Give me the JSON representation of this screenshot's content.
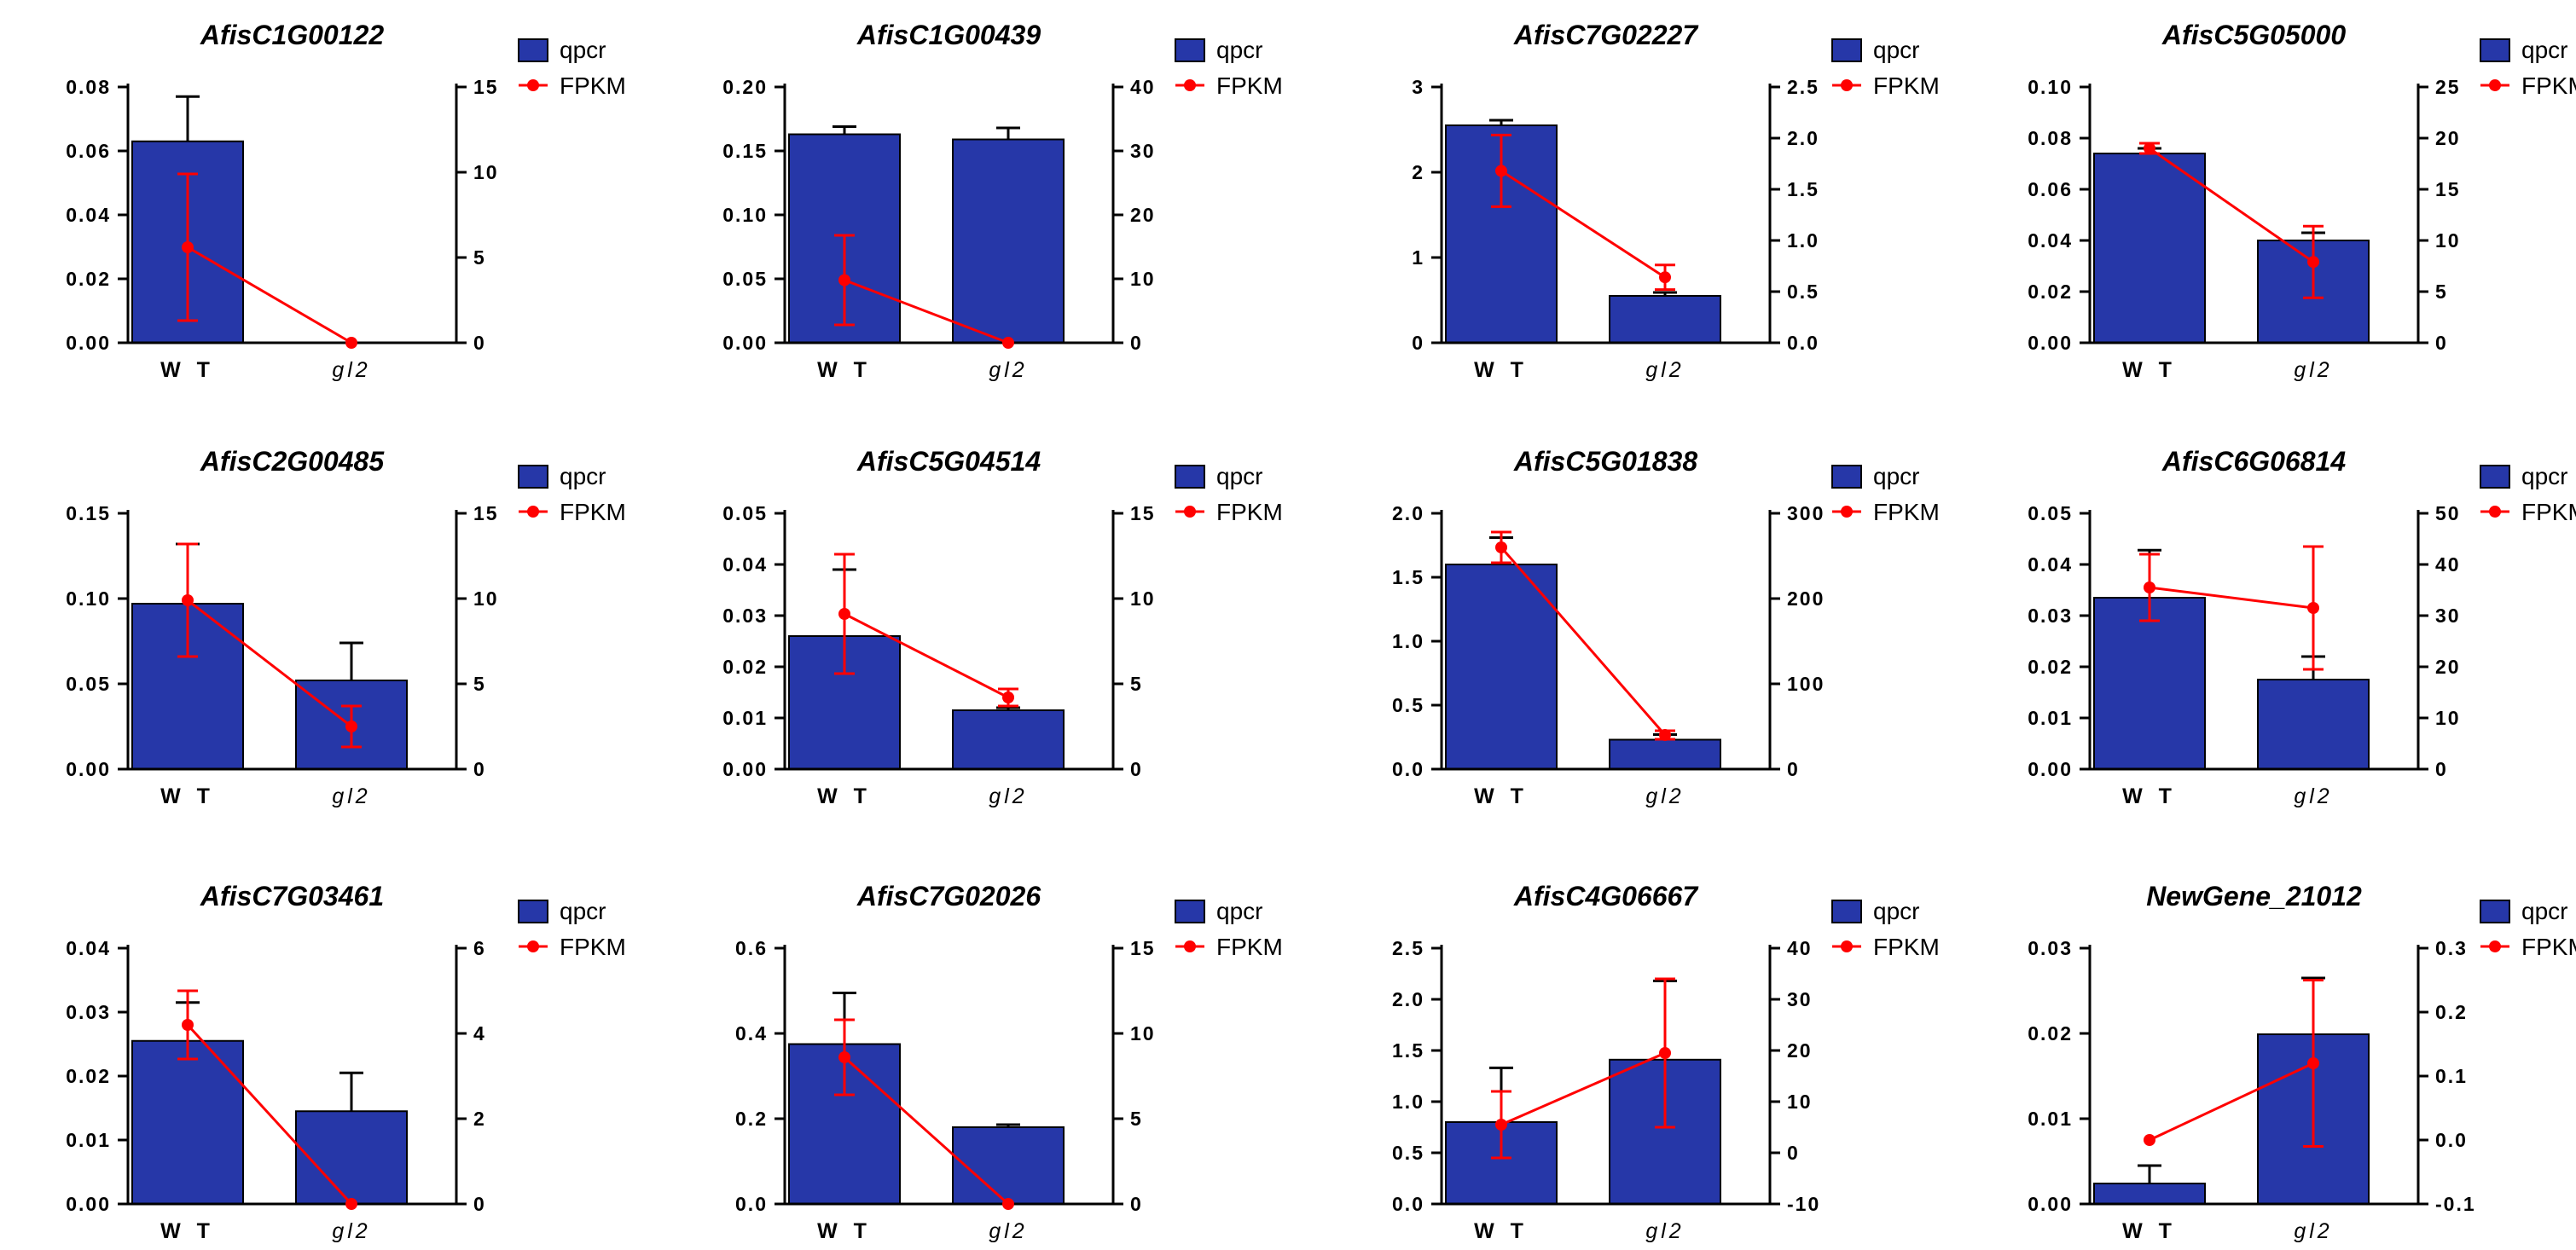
{
  "colors": {
    "bar": "#2637a8",
    "bar_edge": "#000000",
    "line": "#ff0000"
  },
  "legend": {
    "bar_label": "qpcr",
    "line_label": "FPKM"
  },
  "chart_data": [
    {
      "type": "bar+line",
      "title": "AfisC1G00122",
      "categories": [
        "W T",
        "gl2"
      ],
      "left_ylim": [
        0,
        0.08
      ],
      "left_ticks": [
        "0.00",
        "0.02",
        "0.04",
        "0.06",
        "0.08"
      ],
      "right_ylim": [
        0,
        15
      ],
      "right_ticks": [
        "0",
        "5",
        "10",
        "15"
      ],
      "series": [
        {
          "name": "qpcr",
          "values": [
            0.063,
            0.0
          ],
          "errors": [
            0.014,
            0.0
          ]
        },
        {
          "name": "FPKM",
          "values": [
            5.6,
            0.0
          ],
          "errors": [
            4.3,
            0.0
          ]
        }
      ]
    },
    {
      "type": "bar+line",
      "title": "AfisC1G00439",
      "categories": [
        "W T",
        "gl2"
      ],
      "left_ylim": [
        0,
        0.2
      ],
      "left_ticks": [
        "0.00",
        "0.05",
        "0.10",
        "0.15",
        "0.20"
      ],
      "right_ylim": [
        0,
        40
      ],
      "right_ticks": [
        "0",
        "10",
        "20",
        "30",
        "40"
      ],
      "series": [
        {
          "name": "qpcr",
          "values": [
            0.163,
            0.159
          ],
          "errors": [
            0.006,
            0.009
          ]
        },
        {
          "name": "FPKM",
          "values": [
            9.8,
            0.0
          ],
          "errors": [
            7.0,
            0.0
          ]
        }
      ]
    },
    {
      "type": "bar+line",
      "title": "AfisC7G02227",
      "categories": [
        "W T",
        "gl2"
      ],
      "left_ylim": [
        0,
        3
      ],
      "left_ticks": [
        "0",
        "1",
        "2",
        "3"
      ],
      "right_ylim": [
        0,
        2.5
      ],
      "right_ticks": [
        "0.0",
        "0.5",
        "1.0",
        "1.5",
        "2.0",
        "2.5"
      ],
      "series": [
        {
          "name": "qpcr",
          "values": [
            2.55,
            0.55
          ],
          "errors": [
            0.06,
            0.04
          ]
        },
        {
          "name": "FPKM",
          "values": [
            1.68,
            0.64
          ],
          "errors": [
            0.35,
            0.12
          ]
        }
      ]
    },
    {
      "type": "bar+line",
      "title": "AfisC5G05000",
      "categories": [
        "W T",
        "gl2"
      ],
      "left_ylim": [
        0,
        0.1
      ],
      "left_ticks": [
        "0.00",
        "0.02",
        "0.04",
        "0.06",
        "0.08",
        "0.10"
      ],
      "right_ylim": [
        0,
        25
      ],
      "right_ticks": [
        "0",
        "5",
        "10",
        "15",
        "20",
        "25"
      ],
      "series": [
        {
          "name": "qpcr",
          "values": [
            0.074,
            0.04
          ],
          "errors": [
            0.002,
            0.003
          ]
        },
        {
          "name": "FPKM",
          "values": [
            19.0,
            7.9
          ],
          "errors": [
            0.5,
            3.5
          ]
        }
      ]
    },
    {
      "type": "bar+line",
      "title": "AfisC2G00485",
      "categories": [
        "W T",
        "gl2"
      ],
      "left_ylim": [
        0,
        0.15
      ],
      "left_ticks": [
        "0.00",
        "0.05",
        "0.10",
        "0.15"
      ],
      "right_ylim": [
        0,
        15
      ],
      "right_ticks": [
        "0",
        "5",
        "10",
        "15"
      ],
      "series": [
        {
          "name": "qpcr",
          "values": [
            0.097,
            0.052
          ],
          "errors": [
            0.035,
            0.022
          ]
        },
        {
          "name": "FPKM",
          "values": [
            9.9,
            2.5
          ],
          "errors": [
            3.3,
            1.2
          ]
        }
      ]
    },
    {
      "type": "bar+line",
      "title": "AfisC5G04514",
      "categories": [
        "W T",
        "gl2"
      ],
      "left_ylim": [
        0,
        0.05
      ],
      "left_ticks": [
        "0.00",
        "0.01",
        "0.02",
        "0.03",
        "0.04",
        "0.05"
      ],
      "right_ylim": [
        0,
        15
      ],
      "right_ticks": [
        "0",
        "5",
        "10",
        "15"
      ],
      "series": [
        {
          "name": "qpcr",
          "values": [
            0.026,
            0.0115
          ],
          "errors": [
            0.013,
            0.0005
          ]
        },
        {
          "name": "FPKM",
          "values": [
            9.1,
            4.2
          ],
          "errors": [
            3.5,
            0.5
          ]
        }
      ]
    },
    {
      "type": "bar+line",
      "title": "AfisC5G01838",
      "categories": [
        "W T",
        "gl2"
      ],
      "left_ylim": [
        0,
        2
      ],
      "left_ticks": [
        "0.0",
        "0.5",
        "1.0",
        "1.5",
        "2.0"
      ],
      "right_ylim": [
        0,
        300
      ],
      "right_ticks": [
        "0",
        "100",
        "200",
        "300"
      ],
      "series": [
        {
          "name": "qpcr",
          "values": [
            1.6,
            0.23
          ],
          "errors": [
            0.21,
            0.04
          ]
        },
        {
          "name": "FPKM",
          "values": [
            260,
            40
          ],
          "errors": [
            18,
            5
          ]
        }
      ]
    },
    {
      "type": "bar+line",
      "title": "AfisC6G06814",
      "categories": [
        "W T",
        "gl2"
      ],
      "left_ylim": [
        0,
        0.05
      ],
      "left_ticks": [
        "0.00",
        "0.01",
        "0.02",
        "0.03",
        "0.04",
        "0.05"
      ],
      "right_ylim": [
        0,
        50
      ],
      "right_ticks": [
        "0",
        "10",
        "20",
        "30",
        "40",
        "50"
      ],
      "series": [
        {
          "name": "qpcr",
          "values": [
            0.0335,
            0.0175
          ],
          "errors": [
            0.0093,
            0.0045
          ]
        },
        {
          "name": "FPKM",
          "values": [
            35.5,
            31.5
          ],
          "errors": [
            6.5,
            12.0
          ]
        }
      ]
    },
    {
      "type": "bar+line",
      "title": "AfisC7G03461",
      "categories": [
        "W T",
        "gl2"
      ],
      "left_ylim": [
        0,
        0.04
      ],
      "left_ticks": [
        "0.00",
        "0.01",
        "0.02",
        "0.03",
        "0.04"
      ],
      "right_ylim": [
        0,
        6
      ],
      "right_ticks": [
        "0",
        "2",
        "4",
        "6"
      ],
      "series": [
        {
          "name": "qpcr",
          "values": [
            0.0255,
            0.0145
          ],
          "errors": [
            0.006,
            0.006
          ]
        },
        {
          "name": "FPKM",
          "values": [
            4.2,
            0.0
          ],
          "errors": [
            0.8,
            0.0
          ]
        }
      ]
    },
    {
      "type": "bar+line",
      "title": "AfisC7G02026",
      "categories": [
        "W T",
        "gl2"
      ],
      "left_ylim": [
        0,
        0.6
      ],
      "left_ticks": [
        "0.0",
        "0.2",
        "0.4",
        "0.6"
      ],
      "right_ylim": [
        0,
        15
      ],
      "right_ticks": [
        "0",
        "5",
        "10",
        "15"
      ],
      "series": [
        {
          "name": "qpcr",
          "values": [
            0.375,
            0.18
          ],
          "errors": [
            0.12,
            0.006
          ]
        },
        {
          "name": "FPKM",
          "values": [
            8.6,
            0.0
          ],
          "errors": [
            2.2,
            0.0
          ]
        }
      ]
    },
    {
      "type": "bar+line",
      "title": "AfisC4G06667",
      "categories": [
        "W T",
        "gl2"
      ],
      "left_ylim": [
        0,
        2.5
      ],
      "left_ticks": [
        "0.0",
        "0.5",
        "1.0",
        "1.5",
        "2.0",
        "2.5"
      ],
      "right_ylim": [
        -10,
        40
      ],
      "right_ticks": [
        "-10",
        "0",
        "10",
        "20",
        "30",
        "40"
      ],
      "series": [
        {
          "name": "qpcr",
          "values": [
            0.8,
            1.41
          ],
          "errors": [
            0.53,
            0.77
          ]
        },
        {
          "name": "FPKM",
          "values": [
            5.5,
            19.5
          ],
          "errors": [
            6.5,
            14.5
          ]
        }
      ]
    },
    {
      "type": "bar+line",
      "title": "NewGene_21012",
      "categories": [
        "W T",
        "gl2"
      ],
      "left_ylim": [
        0,
        0.03
      ],
      "left_ticks": [
        "0.00",
        "0.01",
        "0.02",
        "0.03"
      ],
      "right_ylim": [
        -0.1,
        0.3
      ],
      "right_ticks": [
        "-0.1",
        "0.0",
        "0.1",
        "0.2",
        "0.3"
      ],
      "series": [
        {
          "name": "qpcr",
          "values": [
            0.0024,
            0.0199
          ],
          "errors": [
            0.0021,
            0.0066
          ]
        },
        {
          "name": "FPKM",
          "values": [
            0.0,
            0.12
          ],
          "errors": [
            0.0,
            0.13
          ]
        }
      ]
    }
  ]
}
